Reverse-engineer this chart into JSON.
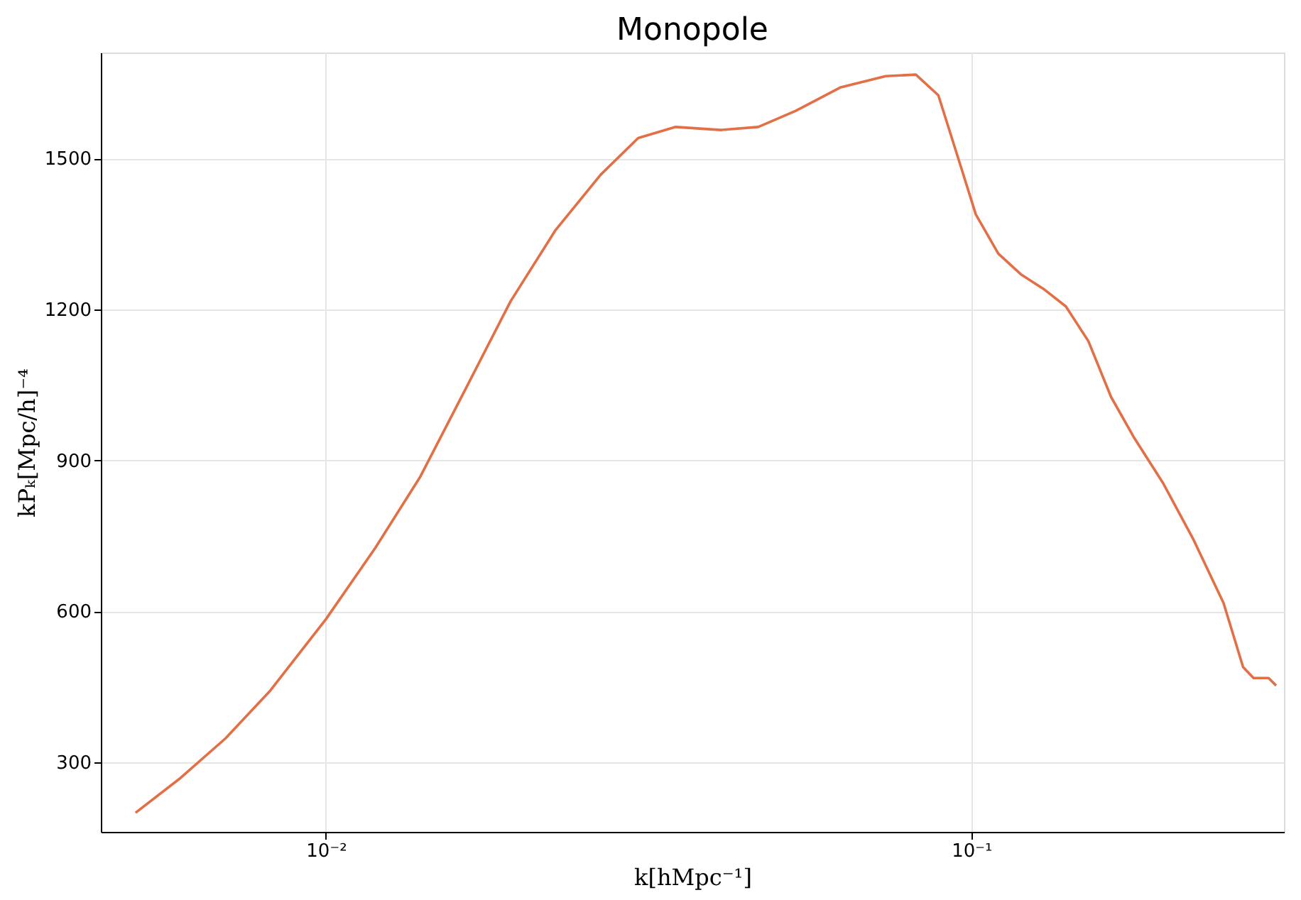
{
  "chart_data": {
    "type": "line",
    "title": "Monopole",
    "xlabel": "k[hMpc⁻¹]",
    "ylabel": "kPₖ[Mpc/h]⁻⁴",
    "log": "x",
    "grid": true,
    "xlim": [
      0.00448,
      0.305
    ],
    "ylim": [
      161,
      1711
    ],
    "xticks": [
      {
        "value": 0.01,
        "label": "10⁻²"
      },
      {
        "value": 0.1,
        "label": "10⁻¹"
      }
    ],
    "yticks": [
      300,
      600,
      900,
      1200,
      1500
    ],
    "x": [
      0.00507,
      0.00595,
      0.00699,
      0.0082,
      0.01,
      0.01193,
      0.01401,
      0.01646,
      0.01932,
      0.02269,
      0.02665,
      0.03046,
      0.03483,
      0.04089,
      0.04675,
      0.05345,
      0.06277,
      0.07369,
      0.08204,
      0.08889,
      0.09632,
      0.1016,
      0.1101,
      0.1193,
      0.1293,
      0.1401,
      0.1518,
      0.1646,
      0.1783,
      0.1985,
      0.2209,
      0.2459,
      0.2636,
      0.2736,
      0.2887,
      0.2966
    ],
    "series": [
      {
        "color": "#e26f46",
        "values": [
          199,
          268,
          347,
          442,
          584,
          726,
          868,
          1042,
          1216,
          1358,
          1468,
          1541,
          1563,
          1557,
          1563,
          1595,
          1642,
          1664,
          1667,
          1626,
          1484,
          1389,
          1311,
          1270,
          1241,
          1206,
          1137,
          1026,
          947,
          853,
          742,
          616,
          489,
          467,
          467,
          452
        ]
      }
    ]
  }
}
